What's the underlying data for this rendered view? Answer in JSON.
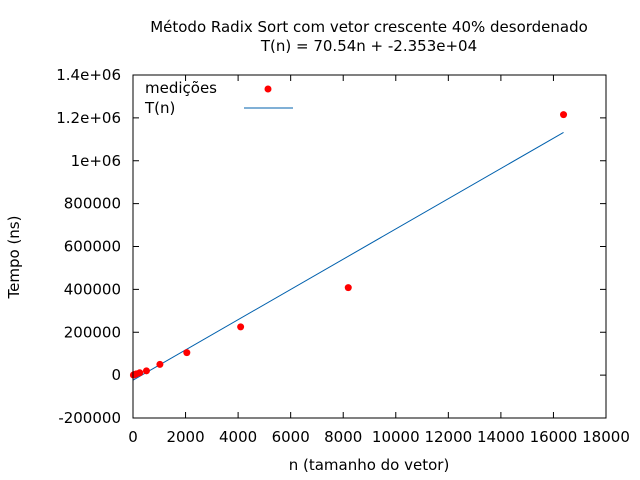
{
  "chart_data": {
    "type": "scatter",
    "title": "Método Radix Sort com vetor crescente 40% desordenado",
    "subtitle": "T(n) = 70.54n + -2.353e+04",
    "xlabel": "n (tamanho do vetor)",
    "ylabel": "Tempo (ns)",
    "xlim": [
      0,
      18000
    ],
    "ylim": [
      -200000,
      1400000
    ],
    "x_ticks": [
      0,
      2000,
      4000,
      6000,
      8000,
      10000,
      12000,
      14000,
      16000,
      18000
    ],
    "x_tick_labels": [
      "0",
      "2000",
      "4000",
      "6000",
      "8000",
      "10000",
      "12000",
      "14000",
      "16000",
      "18000"
    ],
    "y_ticks": [
      -200000,
      0,
      200000,
      400000,
      600000,
      800000,
      1000000,
      1200000,
      1400000
    ],
    "y_tick_labels": [
      "-200000",
      "0",
      "200000",
      "400000",
      "600000",
      "800000",
      "1e+06",
      "1.2e+06",
      "1.4e+06"
    ],
    "grid": false,
    "legend_position": "top-left",
    "series": [
      {
        "name": "medições",
        "kind": "points",
        "color": "#ff0000",
        "x": [
          16,
          32,
          64,
          128,
          256,
          512,
          1024,
          2048,
          4096,
          8192,
          16384
        ],
        "y": [
          500,
          1500,
          2500,
          6000,
          11000,
          20000,
          50000,
          105000,
          225000,
          408000,
          1215000
        ]
      },
      {
        "name": "T(n)",
        "kind": "line",
        "color": "#0060ad",
        "slope": 70.54,
        "intercept": -23530,
        "x_range": [
          0,
          16384
        ]
      }
    ]
  }
}
